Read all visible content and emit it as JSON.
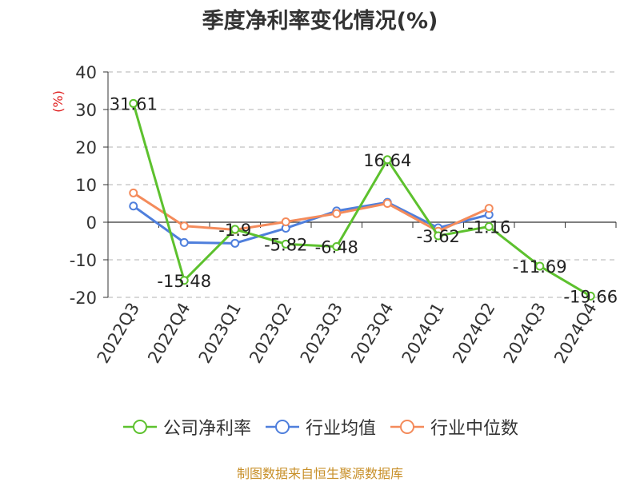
{
  "chart_data": {
    "type": "line",
    "title": "季度净利率变化情况(%)",
    "ylabel": "(%)",
    "categories": [
      "2022Q3",
      "2022Q4",
      "2023Q1",
      "2023Q2",
      "2023Q3",
      "2023Q4",
      "2024Q1",
      "2024Q2",
      "2024Q3",
      "2024Q4"
    ],
    "ylim": [
      -20,
      40
    ],
    "yticks": [
      40,
      30,
      20,
      10,
      0,
      -10,
      -20
    ],
    "grid": true,
    "legend_position": "bottom",
    "series": [
      {
        "name": "公司净利率",
        "color": "#5dc12e",
        "values": [
          31.61,
          -15.48,
          -1.9,
          -5.82,
          -6.48,
          16.64,
          -3.62,
          -1.16,
          -11.69,
          -19.66
        ],
        "labels": [
          "31.61",
          "-15.48",
          "-1.9",
          "-5.82",
          "-6.48",
          "16.64",
          "-3.62",
          "-1.16",
          "-11.69",
          "-19.66"
        ]
      },
      {
        "name": "行业均值",
        "color": "#4f7fdc",
        "values": [
          4.3,
          -5.4,
          -5.6,
          -1.6,
          3.0,
          5.3,
          -1.5,
          2.0,
          null,
          null
        ]
      },
      {
        "name": "行业中位数",
        "color": "#f48b5b",
        "values": [
          7.8,
          -1.0,
          -2.0,
          0.1,
          2.3,
          5.0,
          -2.4,
          3.7,
          null,
          null
        ]
      }
    ]
  },
  "footer": {
    "source": "制图数据来自恒生聚源数据库"
  }
}
